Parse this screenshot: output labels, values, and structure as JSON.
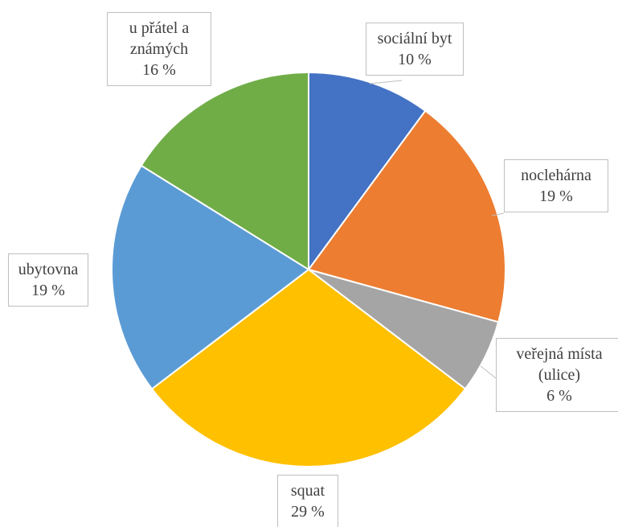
{
  "chart_data": {
    "type": "pie",
    "categories": [
      "sociální byt",
      "noclehárna",
      "veřejná místa (ulice)",
      "squat",
      "ubytovna",
      "u přátel a známých"
    ],
    "values": [
      10,
      19,
      6,
      29,
      19,
      16
    ],
    "value_labels": [
      "10 %",
      "19 %",
      "6 %",
      "29 %",
      "19 %",
      "16 %"
    ],
    "colors": [
      "#4472c4",
      "#ed7d31",
      "#a5a5a5",
      "#ffc000",
      "#5b9bd5",
      "#70ad47"
    ]
  }
}
